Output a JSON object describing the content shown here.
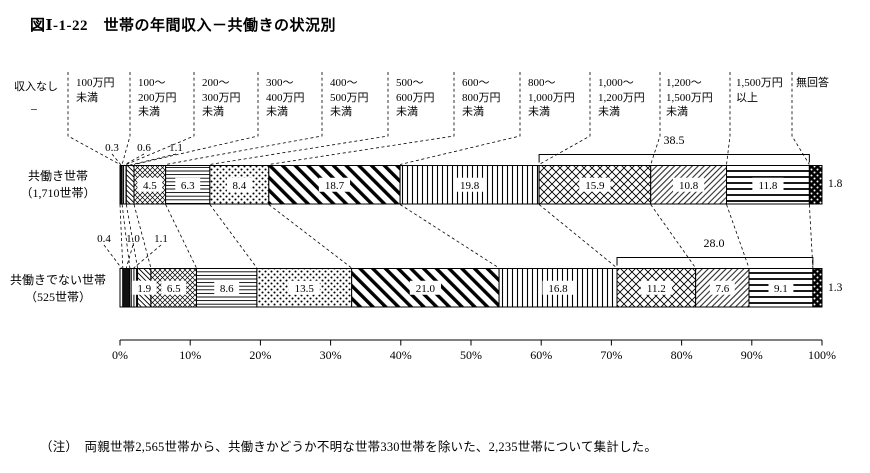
{
  "title": "図Ⅰ-1-22　世帯の年間収入－共働きの状況別",
  "note": "（注）　両親世帯2,565世帯から、共働きかどうか不明な世帯330世帯を除いた、2,235世帯について集計した。",
  "chart_data": {
    "type": "bar",
    "variant": "horizontal-stacked-100percent",
    "unit": "%",
    "categories": [
      "収入なし",
      "100万円未満",
      "100～200万円未満",
      "200～300万円未満",
      "300～400万円未満",
      "400～500万円未満",
      "500～600万円未満",
      "600～800万円未満",
      "800～1,000万円未満",
      "1,000～1,200万円未満",
      "1,200～1,500万円未満",
      "1,500万円以上",
      "無回答"
    ],
    "category_headers": [
      "収入なし",
      "100万円\n未満",
      "100～\n200万円\n未満",
      "200～\n300万円\n未満",
      "300～\n400万円\n未満",
      "400～\n500万円\n未満",
      "500～\n600万円\n未満",
      "600～\n800万円\n未満",
      "800～\n1,000万円\n未満",
      "1,000～\n1,200万円\n未満",
      "1,200～\n1,500万円\n未満",
      "1,500万円\n以上",
      "無回答"
    ],
    "series": [
      {
        "name": "共働き世帯（1,710世帯）",
        "label": "共働き世帯\n（1,710世帯）",
        "values": [
          null,
          0.3,
          0.6,
          1.1,
          4.5,
          6.3,
          8.4,
          18.7,
          19.8,
          15.9,
          10.8,
          11.8,
          1.8
        ],
        "no_income_display": "−",
        "bracket": {
          "display": "38.5",
          "from_index": 9,
          "to_index": 11
        }
      },
      {
        "name": "共働きでない世帯（525世帯）",
        "label": "共働きでない世帯\n（525世帯）",
        "values": [
          0.4,
          1.0,
          1.1,
          1.9,
          6.5,
          8.6,
          13.5,
          21.0,
          16.8,
          11.2,
          7.6,
          9.1,
          1.3
        ],
        "bracket": {
          "display": "28.0",
          "from_index": 9,
          "to_index": 11
        }
      }
    ],
    "x_axis": {
      "min": 0,
      "max": 100,
      "grid": false,
      "tick_labels": [
        "0%",
        "10%",
        "20%",
        "30%",
        "40%",
        "50%",
        "60%",
        "70%",
        "80%",
        "90%",
        "100%"
      ]
    },
    "patterns": [
      "plain",
      "solid-black",
      "vlines-dense",
      "diag-down-fine",
      "crosshatch-fine",
      "hlines-thin",
      "dots",
      "diag-bold",
      "vlines",
      "diamond-lattice",
      "diag-fine",
      "hlines-bold",
      "black-white-dots"
    ],
    "colors": {
      "ink": "#000000",
      "background": "#ffffff"
    }
  }
}
